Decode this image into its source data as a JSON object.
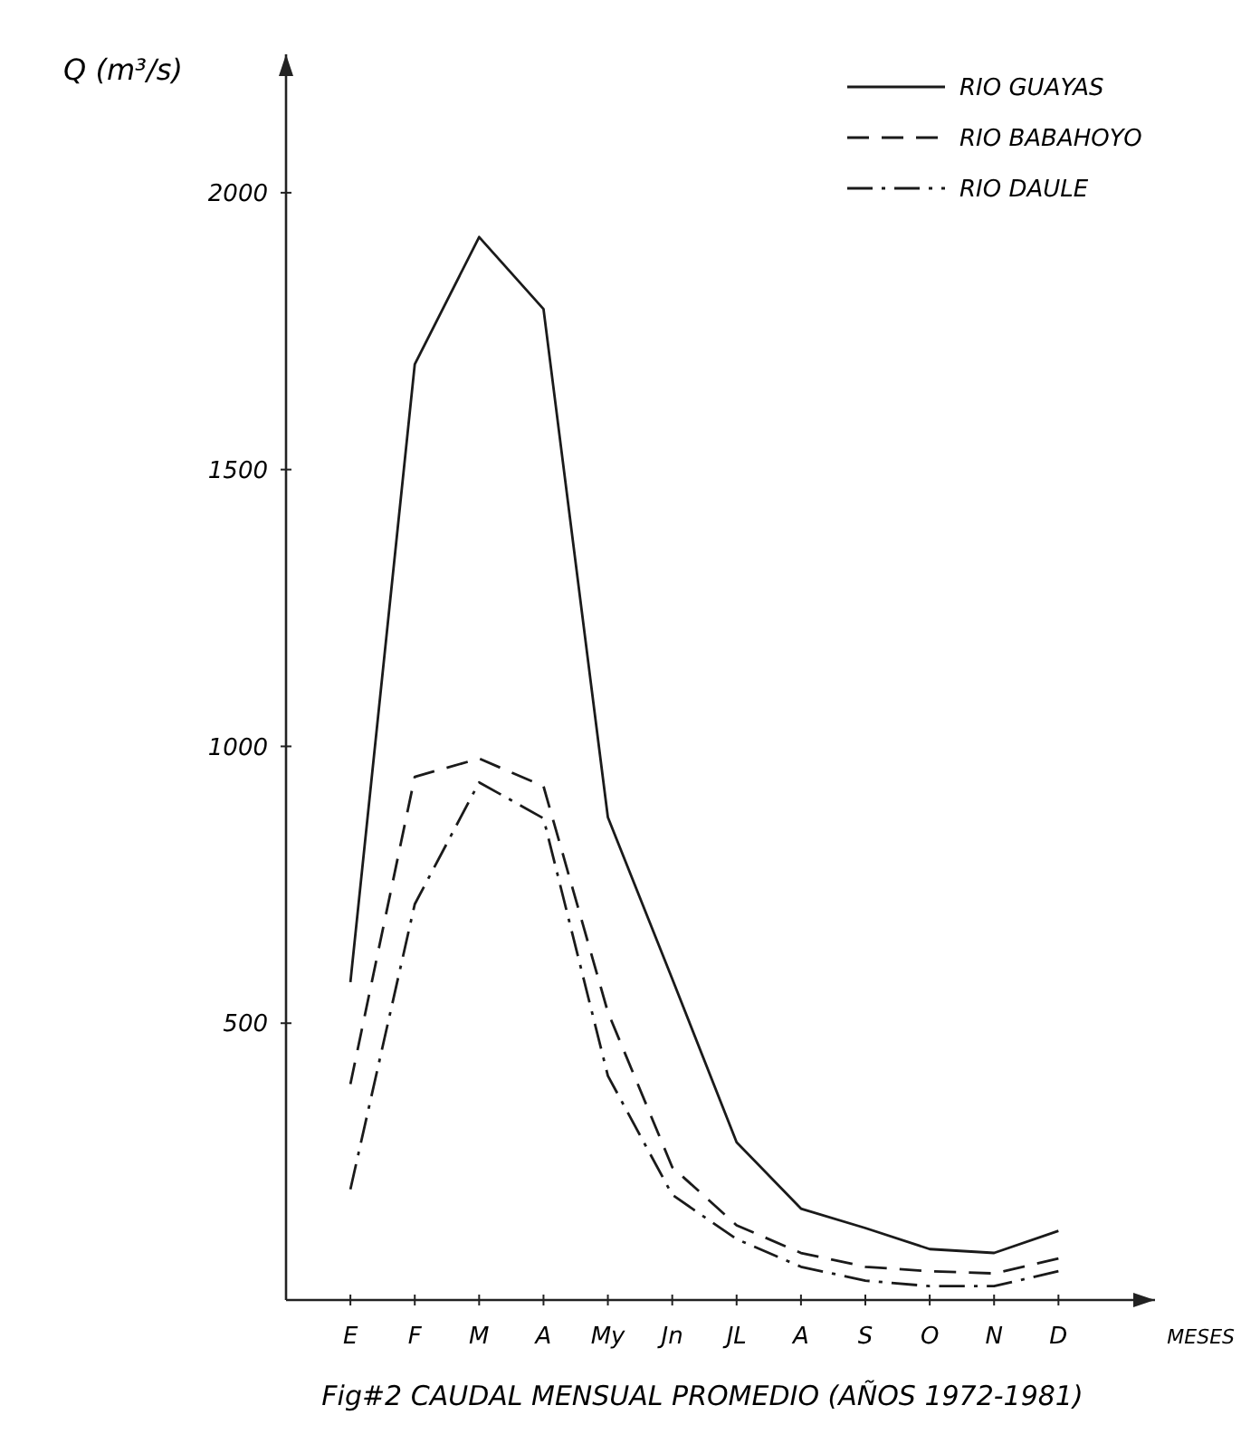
{
  "chart_data": {
    "type": "line",
    "title": "Fig#2 CAUDAL MENSUAL PROMEDIO (AÑOS 1972-1981)",
    "xlabel": "MESES",
    "ylabel": "Q (m³/s)",
    "categories": [
      "E",
      "F",
      "M",
      "A",
      "My",
      "Jn",
      "JL",
      "A",
      "S",
      "O",
      "N",
      "D"
    ],
    "ylim": [
      0,
      2250
    ],
    "yticks": [
      500,
      1000,
      1500,
      2000
    ],
    "grid": false,
    "legend": "top right",
    "marker": "none",
    "series": [
      {
        "name": "RIO GUAYAS",
        "color": "#1a1a1a",
        "line_style": "solid",
        "values": [
          574,
          1690,
          1920,
          1790,
          872,
          580,
          285,
          165,
          130,
          92,
          85,
          125
        ]
      },
      {
        "name": "RIO BABAHOYO",
        "color": "#1a1a1a",
        "line_style": "dashed",
        "values": [
          390,
          945,
          978,
          928,
          520,
          240,
          135,
          85,
          60,
          52,
          48,
          75
        ]
      },
      {
        "name": "RIO DAULE",
        "color": "#1a1a1a",
        "line_style": "dashdot",
        "values": [
          200,
          715,
          935,
          870,
          405,
          190,
          110,
          60,
          35,
          25,
          25,
          52
        ]
      }
    ]
  }
}
